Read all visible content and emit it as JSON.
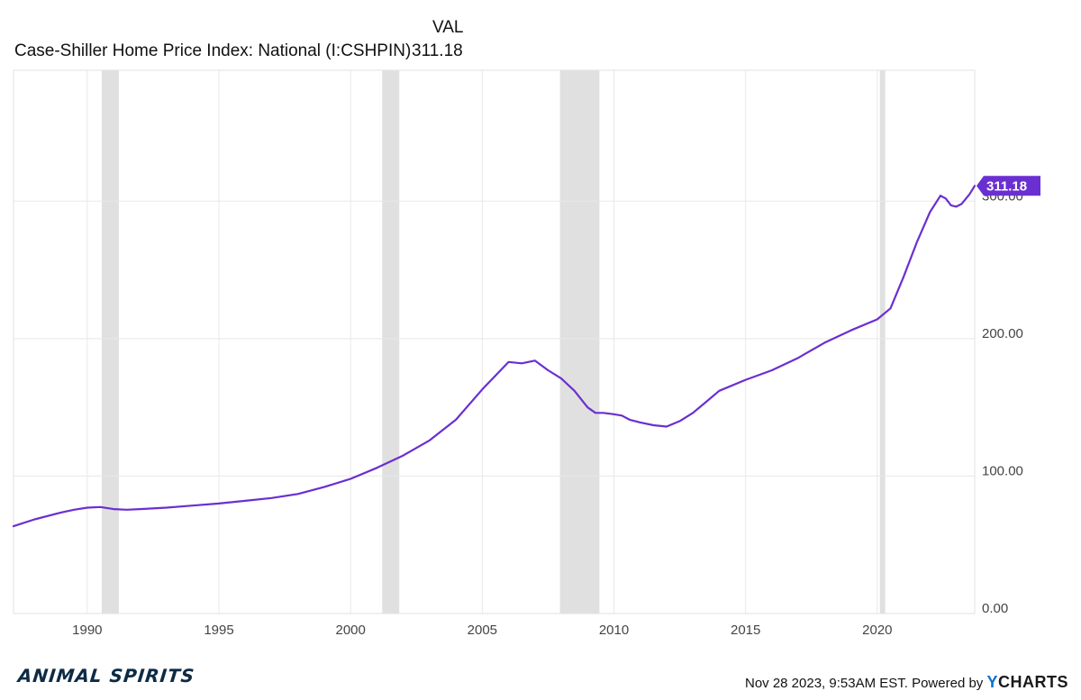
{
  "legend": {
    "header": "VAL",
    "series_name": "Case-Shiller Home Price Index: National (I:CSHPIN)",
    "series_value": "311.18"
  },
  "colors": {
    "line": "#6a2fd0",
    "recession": "#e0e0e0",
    "grid": "#e8e8e8",
    "axis": "#444444"
  },
  "footer": {
    "timestamp": "Nov 28 2023, 9:53AM EST. Powered by",
    "logo_y": "Y",
    "logo_rest": "CHARTS"
  },
  "brand": "ANIMAL SPIRITS",
  "chart_data": {
    "type": "line",
    "title": "Case-Shiller Home Price Index: National (I:CSHPIN)",
    "xlabel": "",
    "ylabel": "",
    "xlim": [
      1987.2,
      2023.7
    ],
    "ylim": [
      0,
      390
    ],
    "x_ticks": [
      1990,
      1995,
      2000,
      2005,
      2010,
      2015,
      2020
    ],
    "x_tick_labels": [
      "1990",
      "1995",
      "2000",
      "2005",
      "2010",
      "2015",
      "2020"
    ],
    "y_ticks": [
      0,
      100,
      200,
      300
    ],
    "y_tick_labels": [
      "0.00",
      "100.00",
      "200.00",
      "300.00"
    ],
    "last_value_label": "311.18",
    "last_value": 311.18,
    "recessions": [
      [
        1990.55,
        1991.2
      ],
      [
        2001.2,
        2001.85
      ],
      [
        2007.95,
        2009.45
      ],
      [
        2020.1,
        2020.3
      ]
    ],
    "series": [
      {
        "name": "Case-Shiller Home Price Index: National (I:CSHPIN)",
        "x": [
          1987.2,
          1988,
          1989,
          1989.5,
          1990,
          1990.5,
          1991,
          1991.5,
          1992,
          1993,
          1994,
          1995,
          1996,
          1997,
          1998,
          1999,
          2000,
          2001,
          2002,
          2003,
          2004,
          2005,
          2006,
          2006.5,
          2007,
          2007.5,
          2008,
          2008.5,
          2009,
          2009.3,
          2009.6,
          2010,
          2010.3,
          2010.6,
          2011,
          2011.5,
          2012,
          2012.5,
          2013,
          2013.5,
          2014,
          2015,
          2016,
          2017,
          2018,
          2019,
          2020,
          2020.5,
          2021,
          2021.5,
          2022,
          2022.4,
          2022.6,
          2022.8,
          2023.0,
          2023.2,
          2023.5,
          2023.7
        ],
        "values": [
          63.5,
          68.5,
          73.5,
          75.5,
          77,
          77.5,
          76,
          75.5,
          76,
          77,
          78.5,
          80,
          82,
          84,
          87,
          92,
          98,
          106,
          115,
          126,
          141,
          163,
          183,
          182,
          184,
          177,
          171,
          162,
          150,
          146,
          146,
          145,
          144,
          141,
          139,
          137,
          136,
          140,
          146,
          154,
          162,
          170,
          177,
          186,
          197,
          206,
          214,
          222,
          245,
          270,
          292,
          304,
          302,
          297,
          296,
          298,
          305,
          311.18
        ]
      }
    ]
  }
}
